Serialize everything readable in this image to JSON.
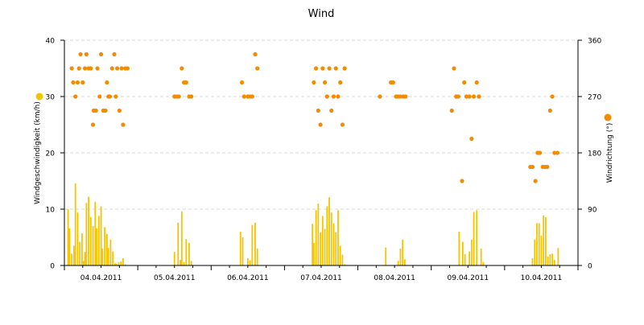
{
  "chart_data": {
    "type": "bar",
    "title": "Wind",
    "ylabel_left": "Windgeschwindigkeit (km/h)",
    "ylabel_right": "Windrichtung (°)",
    "ylim_left": [
      0,
      40
    ],
    "ylim_right": [
      0,
      360
    ],
    "yticks_left": [
      "0",
      "10",
      "20",
      "30",
      "40"
    ],
    "yticks_right": [
      "0",
      "90",
      "180",
      "270",
      "360"
    ],
    "xlim": [
      0,
      7
    ],
    "x_unit": "days from 04.04.2011 00:00",
    "categories": [
      "04.04.2011",
      "05.04.2011",
      "06.04.2011",
      "07.04.2011",
      "08.04.2011",
      "09.04.2011",
      "10.04.2011"
    ],
    "grid": true,
    "legend": "colored markers beside axis titles",
    "colors": {
      "speed": "#f5c400",
      "direction": "#f28c00",
      "grid": "#d8d8d8"
    },
    "series": [
      {
        "axis": "left",
        "style": "bar",
        "x": [
          0.05,
          0.07,
          0.1,
          0.13,
          0.15,
          0.18,
          0.21,
          0.24,
          0.26,
          0.28,
          0.3,
          0.33,
          0.36,
          0.39,
          0.42,
          0.44,
          0.47,
          0.5,
          0.52,
          0.55,
          0.58,
          0.6,
          0.63,
          0.66,
          0.69,
          0.71,
          0.74,
          0.77,
          0.8,
          0.83,
          1.5,
          1.55,
          1.58,
          1.6,
          1.63,
          1.66,
          1.7,
          1.73,
          2.4,
          2.43,
          2.5,
          2.53,
          2.56,
          2.6,
          2.63,
          3.38,
          3.4,
          3.43,
          3.46,
          3.49,
          3.52,
          3.55,
          3.58,
          3.61,
          3.64,
          3.67,
          3.7,
          3.73,
          3.76,
          3.79,
          3.82,
          4.38,
          4.55,
          4.58,
          4.61,
          4.64,
          5.38,
          5.43,
          5.46,
          5.52,
          5.55,
          5.58,
          5.62,
          5.68,
          5.71,
          6.38,
          6.41,
          6.44,
          6.47,
          6.5,
          6.53,
          6.56,
          6.59,
          6.62,
          6.65,
          6.68,
          6.73
        ],
        "values": [
          10.0,
          6.6,
          2.1,
          3.5,
          14.6,
          9.4,
          4.2,
          5.7,
          0.8,
          2.4,
          11.1,
          12.2,
          8.6,
          7.0,
          11.3,
          6.6,
          8.8,
          10.5,
          3.0,
          6.8,
          5.6,
          3.1,
          4.6,
          2.5,
          0.4,
          0.3,
          0.6,
          0.7,
          1.3,
          0.2,
          2.4,
          7.6,
          1.0,
          9.6,
          0.6,
          4.7,
          4.0,
          0.8,
          6.0,
          5.0,
          1.3,
          0.9,
          7.2,
          7.6,
          3.0,
          7.4,
          4.0,
          9.8,
          11.0,
          5.9,
          8.8,
          6.5,
          10.5,
          12.1,
          9.4,
          7.5,
          5.9,
          9.8,
          3.5,
          1.9,
          0.2,
          3.2,
          0.8,
          3.0,
          4.6,
          1.1,
          6.0,
          4.2,
          2.0,
          2.5,
          4.6,
          9.5,
          9.8,
          3.0,
          0.6,
          1.3,
          4.6,
          7.5,
          7.5,
          5.3,
          8.9,
          8.6,
          1.6,
          2.0,
          2.1,
          1.0,
          3.1
        ]
      },
      {
        "axis": "right",
        "style": "scatter",
        "x": [
          0.1,
          0.12,
          0.15,
          0.18,
          0.2,
          0.22,
          0.25,
          0.28,
          0.3,
          0.33,
          0.36,
          0.39,
          0.4,
          0.43,
          0.45,
          0.48,
          0.5,
          0.53,
          0.56,
          0.58,
          0.6,
          0.62,
          0.65,
          0.68,
          0.7,
          0.72,
          0.75,
          0.78,
          0.8,
          0.83,
          0.86,
          1.5,
          1.53,
          1.56,
          1.6,
          1.63,
          1.66,
          1.7,
          1.73,
          2.42,
          2.45,
          2.5,
          2.53,
          2.56,
          2.6,
          2.63,
          3.4,
          3.43,
          3.46,
          3.49,
          3.52,
          3.55,
          3.58,
          3.61,
          3.64,
          3.67,
          3.7,
          3.73,
          3.76,
          3.79,
          3.82,
          4.3,
          4.45,
          4.48,
          4.52,
          4.55,
          4.58,
          4.62,
          4.65,
          5.28,
          5.31,
          5.34,
          5.37,
          5.42,
          5.45,
          5.48,
          5.52,
          5.55,
          5.58,
          5.62,
          5.65,
          6.35,
          6.38,
          6.42,
          6.45,
          6.48,
          6.52,
          6.55,
          6.58,
          6.62,
          6.65,
          6.68,
          6.72
        ],
        "values": [
          315,
          292.5,
          270,
          292.5,
          315,
          337.5,
          292.5,
          315,
          337.5,
          315,
          315,
          225,
          247.5,
          247.5,
          315,
          270,
          337.5,
          247.5,
          247.5,
          292.5,
          270,
          270,
          315,
          337.5,
          270,
          315,
          247.5,
          315,
          225,
          315,
          315,
          270,
          270,
          270,
          315,
          292.5,
          292.5,
          270,
          270,
          292.5,
          270,
          270,
          270,
          270,
          337.5,
          315,
          292.5,
          315,
          247.5,
          225,
          315,
          292.5,
          270,
          315,
          247.5,
          270,
          315,
          270,
          292.5,
          225,
          315,
          270,
          292.5,
          292.5,
          270,
          270,
          270,
          270,
          270,
          247.5,
          315,
          270,
          270,
          135,
          292.5,
          270,
          270,
          202.5,
          270,
          292.5,
          270,
          157.5,
          157.5,
          135,
          180,
          180,
          157.5,
          157.5,
          157.5,
          247.5,
          270,
          180,
          180
        ]
      }
    ]
  }
}
